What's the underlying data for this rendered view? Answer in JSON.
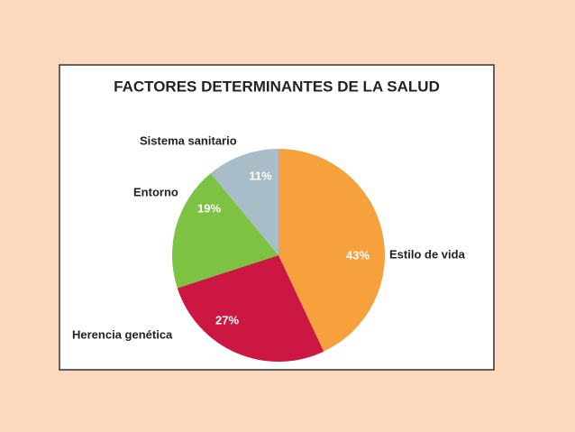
{
  "chart_data": {
    "type": "pie",
    "title": "FACTORES DETERMINANTES DE LA SALUD",
    "categories": [
      "Estilo de vida",
      "Herencia genética",
      "Entorno",
      "Sistema sanitario"
    ],
    "values": [
      43,
      27,
      19,
      11
    ],
    "value_labels": [
      "43%",
      "27%",
      "19%",
      "11%"
    ],
    "colors": [
      "#f7a13c",
      "#cb1742",
      "#7dc243",
      "#a9bdc9"
    ]
  }
}
